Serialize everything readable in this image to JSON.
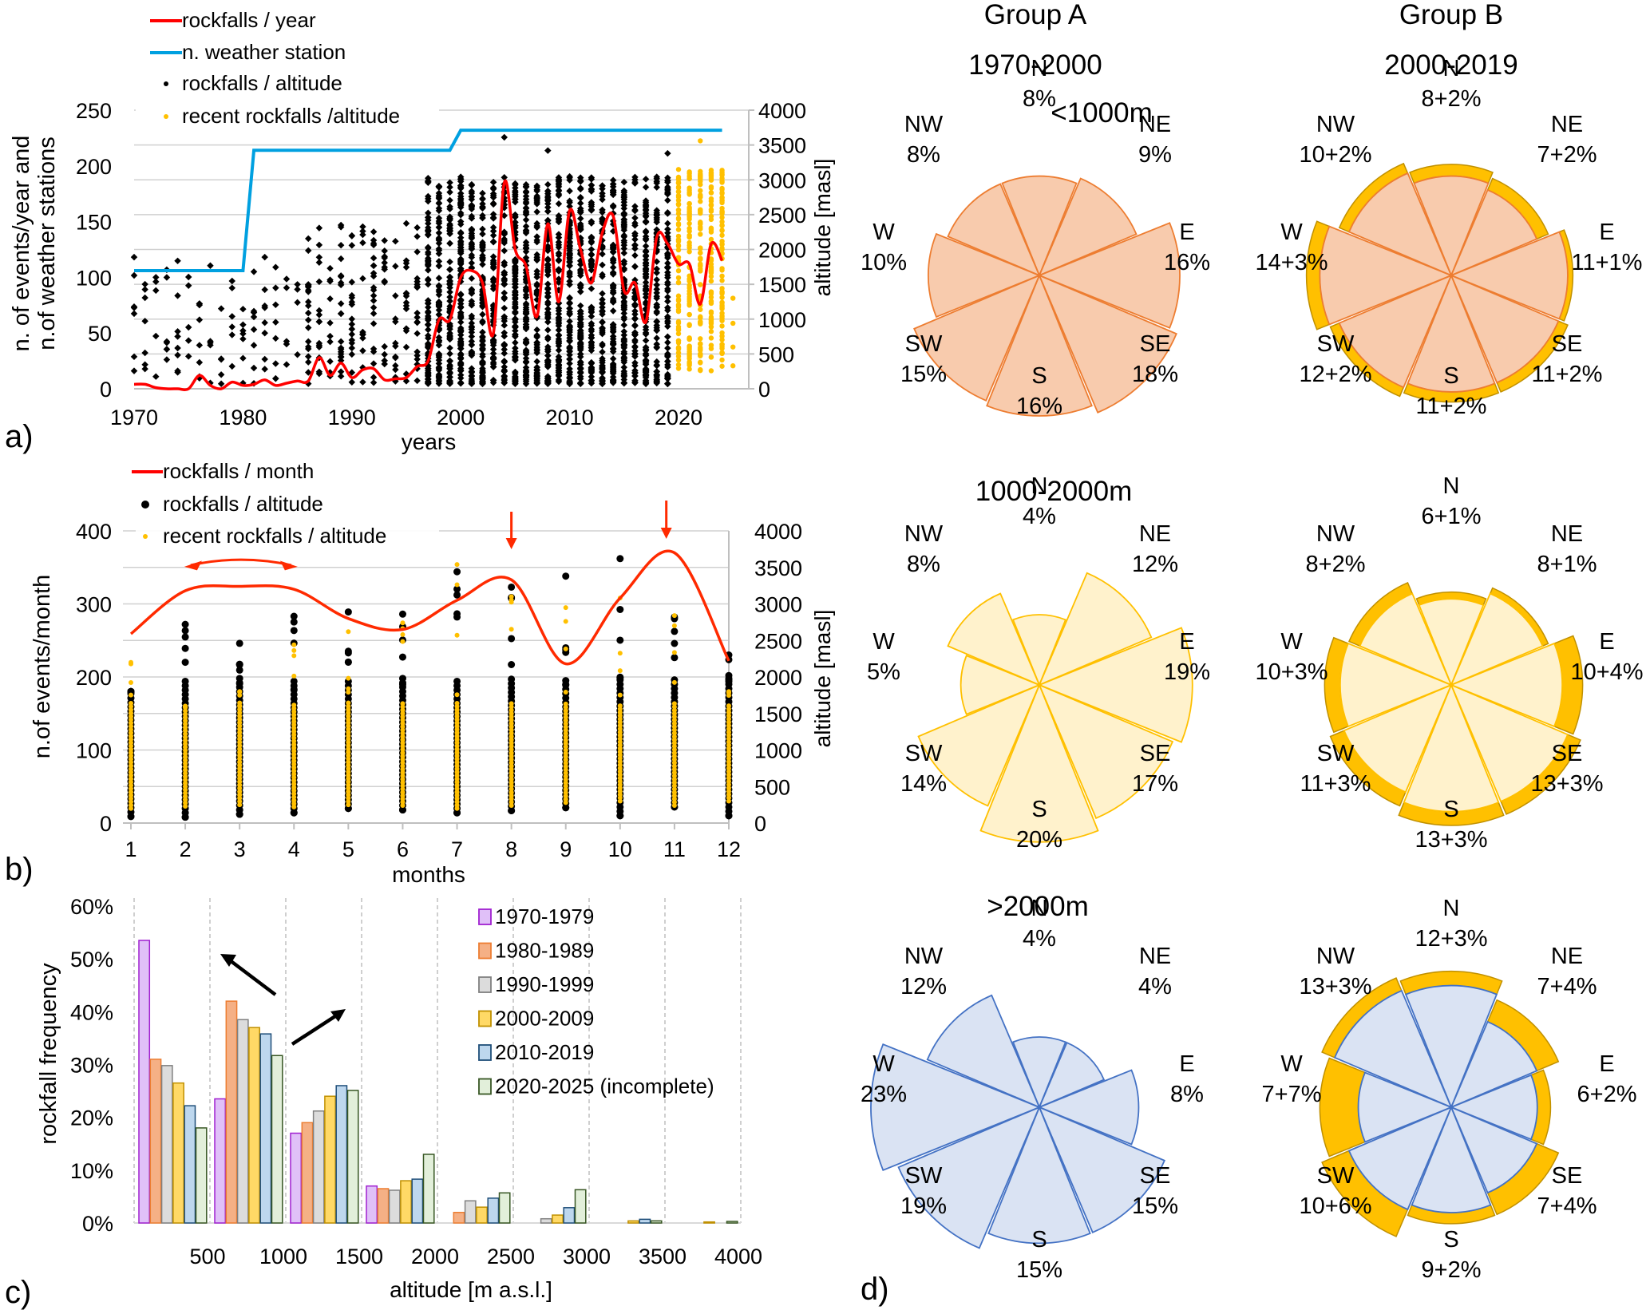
{
  "panels": {
    "a": "a)",
    "b": "b)",
    "c": "c)",
    "d": "d)"
  },
  "chart_data": [
    {
      "id": "a",
      "type": "line",
      "title": "",
      "xlabel": "years",
      "ylabel_left": "n. of events/year and n.of weather stations",
      "ylabel_left_lines": [
        "n. of events/year and",
        "n.of weather stations"
      ],
      "ylabel_right": "altitude [masl]",
      "xlim": [
        1970,
        2025
      ],
      "ylim_left": [
        0,
        250
      ],
      "ylim_right": [
        0,
        4000
      ],
      "xticks": [
        1970,
        1980,
        1990,
        2000,
        2010,
        2020
      ],
      "yticks_left": [
        0,
        50,
        100,
        150,
        200,
        250
      ],
      "yticks_right": [
        0,
        500,
        1000,
        1500,
        2000,
        2500,
        3000,
        3500,
        4000
      ],
      "grid": true,
      "legend_position": "top-left",
      "legend": [
        {
          "label": "rockfalls / year",
          "type": "line",
          "color": "#ff0000"
        },
        {
          "label": "n. weather station",
          "type": "line",
          "color": "#00a0e0"
        },
        {
          "label": "rockfalls / altitude",
          "type": "dot",
          "color": "#000000"
        },
        {
          "label": "recent rockfalls /altitude",
          "type": "dot",
          "color": "#ffc000"
        }
      ],
      "series": [
        {
          "name": "rockfalls / year",
          "axis": "left",
          "x": [
            1970,
            1971,
            1972,
            1973,
            1974,
            1975,
            1976,
            1977,
            1978,
            1979,
            1980,
            1981,
            1982,
            1983,
            1984,
            1985,
            1986,
            1987,
            1988,
            1989,
            1990,
            1991,
            1992,
            1993,
            1994,
            1995,
            1996,
            1997,
            1998,
            1999,
            2000,
            2001,
            2002,
            2003,
            2004,
            2005,
            2006,
            2007,
            2008,
            2009,
            2010,
            2011,
            2012,
            2013,
            2014,
            2015,
            2016,
            2017,
            2018,
            2019,
            2020,
            2021,
            2022,
            2023,
            2024
          ],
          "values": [
            4,
            4,
            1,
            0,
            0,
            0,
            12,
            3,
            0,
            6,
            3,
            4,
            8,
            3,
            5,
            7,
            7,
            28,
            12,
            23,
            10,
            17,
            18,
            8,
            9,
            10,
            20,
            25,
            62,
            62,
            100,
            106,
            95,
            50,
            185,
            125,
            110,
            65,
            148,
            78,
            160,
            125,
            95,
            140,
            155,
            88,
            95,
            60,
            136,
            130,
            112,
            112,
            76,
            130,
            115
          ]
        },
        {
          "name": "n. weather station",
          "axis": "left",
          "x": [
            1970,
            1980,
            1981,
            1999,
            2000,
            2024
          ],
          "values": [
            106,
            106,
            214,
            214,
            232,
            232
          ]
        },
        {
          "name": "rockfalls / altitude",
          "axis": "right",
          "description": "individual rockfall events plotted by year and altitude (1970-2019)",
          "x_range": [
            1970,
            2019
          ],
          "altitude_range": [
            70,
            3610
          ]
        },
        {
          "name": "recent rockfalls /altitude",
          "axis": "right",
          "description": "recent rockfall events plotted by year and altitude (2020-2025)",
          "x_range": [
            2020,
            2025
          ],
          "altitude_range": [
            250,
            3560
          ]
        }
      ]
    },
    {
      "id": "b",
      "type": "line",
      "title": "",
      "xlabel": "months",
      "ylabel_left": "n.of events/month",
      "ylabel_right": "altitude [masl]",
      "xlim": [
        1,
        12
      ],
      "ylim_left": [
        0,
        400
      ],
      "ylim_right": [
        0,
        4000
      ],
      "xticks": [
        1,
        2,
        3,
        4,
        5,
        6,
        7,
        8,
        9,
        10,
        11,
        12
      ],
      "yticks_left": [
        0,
        100,
        200,
        300,
        400
      ],
      "yticks_right": [
        0,
        500,
        1000,
        1500,
        2000,
        2500,
        3000,
        3500,
        4000
      ],
      "grid": true,
      "legend_position": "top-left",
      "legend": [
        {
          "label": "rockfalls / month",
          "type": "line",
          "color": "#ff0000"
        },
        {
          "label": "rockfalls / altitude",
          "type": "dot",
          "color": "#000000"
        },
        {
          "label": "recent rockfalls / altitude",
          "type": "dot",
          "color": "#ffc000"
        }
      ],
      "series": [
        {
          "name": "rockfalls / month",
          "axis": "left",
          "x": [
            1,
            2,
            3,
            4,
            5,
            6,
            7,
            8,
            9,
            10,
            11,
            12
          ],
          "values": [
            259,
            318,
            324,
            320,
            280,
            265,
            305,
            333,
            218,
            308,
            370,
            222
          ]
        },
        {
          "name": "rockfalls / altitude",
          "axis": "right",
          "x": [
            1,
            2,
            3,
            4,
            5,
            6,
            7,
            8,
            9,
            10,
            11,
            12
          ],
          "altitude_min": [
            90,
            80,
            120,
            140,
            200,
            180,
            140,
            170,
            210,
            100,
            220,
            100
          ],
          "altitude_max": [
            1800,
            2720,
            2460,
            2830,
            2890,
            2860,
            3440,
            3230,
            3380,
            3620,
            2820,
            2300
          ]
        },
        {
          "name": "recent rockfalls / altitude",
          "axis": "right",
          "x": [
            1,
            2,
            3,
            4,
            5,
            6,
            7,
            8,
            9,
            10,
            11,
            12
          ],
          "altitude_min": [
            200,
            230,
            250,
            220,
            250,
            240,
            200,
            240,
            280,
            300,
            240,
            300
          ],
          "altitude_max": [
            2200,
            1600,
            1800,
            2440,
            2620,
            2740,
            3540,
            3100,
            2950,
            3080,
            2840,
            1800
          ]
        }
      ],
      "annotations": [
        {
          "type": "double-arrow",
          "from_month": 2,
          "to_month": 4,
          "label": ""
        },
        {
          "type": "down-arrow",
          "month": 8
        },
        {
          "type": "down-arrow",
          "month": 11
        }
      ]
    },
    {
      "id": "c",
      "type": "bar",
      "title": "",
      "xlabel": "altitude [m a.s.l.]",
      "ylabel": "rockfall frequency",
      "ylim": [
        0,
        60
      ],
      "yticks": [
        "0%",
        "10%",
        "20%",
        "30%",
        "40%",
        "50%",
        "60%"
      ],
      "categories": [
        "500",
        "1000",
        "1500",
        "2000",
        "2500",
        "3000",
        "3500",
        "4000"
      ],
      "grid": true,
      "legend_position": "top-right",
      "series": [
        {
          "name": "1970-1979",
          "fill": "#e0c0f8",
          "stroke": "#a020d0",
          "values": [
            53.5,
            23.5,
            17,
            7,
            0,
            0,
            0,
            0
          ]
        },
        {
          "name": "1980-1989",
          "fill": "#f5b085",
          "stroke": "#ed7d31",
          "values": [
            31,
            42,
            19,
            6.5,
            2,
            0,
            0,
            0
          ]
        },
        {
          "name": "1990-1999",
          "fill": "#dcdcdc",
          "stroke": "#808080",
          "values": [
            29.8,
            38.5,
            21.2,
            6.2,
            4.2,
            0.8,
            0,
            0
          ]
        },
        {
          "name": "2000-2009",
          "fill": "#ffd966",
          "stroke": "#c09000",
          "values": [
            26.5,
            37,
            24,
            8,
            3,
            1.5,
            0.4,
            0.2
          ]
        },
        {
          "name": "2010-2019",
          "fill": "#bdd7ee",
          "stroke": "#1f4e79",
          "values": [
            22.2,
            35.8,
            26,
            8.3,
            4.7,
            2.9,
            0.7,
            0
          ]
        },
        {
          "name": "2020-2025 (incomplete)",
          "fill": "#e2efda",
          "stroke": "#375623",
          "values": [
            18,
            31.7,
            25.1,
            13,
            5.7,
            6.3,
            0.4,
            0.3
          ]
        }
      ],
      "annotations": [
        {
          "type": "arrow",
          "direction": "up-left",
          "near": "1000"
        },
        {
          "type": "arrow",
          "direction": "up-right",
          "near": "1500"
        }
      ]
    },
    {
      "id": "d",
      "type": "rose",
      "directions": [
        "N",
        "NE",
        "E",
        "SE",
        "S",
        "SW",
        "W",
        "NW"
      ],
      "groups": [
        {
          "label": "Group A",
          "period": "1970-2000"
        },
        {
          "label": "Group B",
          "period": "2000-2019"
        }
      ],
      "bands": [
        {
          "label": "<1000m",
          "fill": "#f8cbad",
          "stroke": "#ed7d31",
          "group_a": [
            8,
            9,
            16,
            18,
            16,
            15,
            10,
            8
          ],
          "group_b_base": [
            8,
            7,
            11,
            11,
            11,
            12,
            14,
            10
          ],
          "group_b_extra": [
            2,
            2,
            1,
            2,
            2,
            2,
            3,
            2
          ]
        },
        {
          "label": "1000-2000m",
          "fill": "#fff2cc",
          "stroke": "#ffc000",
          "group_a": [
            4,
            12,
            19,
            17,
            20,
            14,
            5,
            8
          ],
          "group_b_base": [
            6,
            8,
            10,
            13,
            13,
            11,
            10,
            8
          ],
          "group_b_extra": [
            1,
            1,
            4,
            3,
            3,
            3,
            3,
            2
          ]
        },
        {
          "label": ">2000m",
          "fill": "#dae3f3",
          "stroke": "#4472c4",
          "group_a": [
            4,
            4,
            8,
            15,
            15,
            19,
            23,
            12
          ],
          "group_b_base": [
            12,
            7,
            6,
            7,
            9,
            10,
            7,
            13
          ],
          "group_b_extra": [
            3,
            4,
            2,
            4,
            2,
            6,
            7,
            3
          ]
        }
      ],
      "extra_color": "#ffc000"
    }
  ]
}
